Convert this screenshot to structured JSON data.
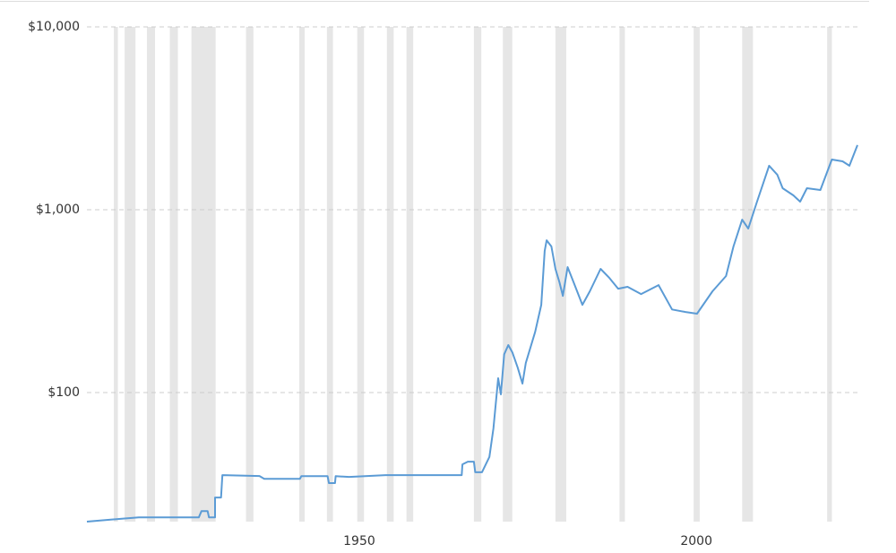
{
  "chart_data": {
    "type": "line",
    "log_scale": true,
    "grid": true,
    "color": "#5b9bd5",
    "band_color": "#e6e6e6",
    "x": [
      1909.6,
      1915.2,
      1917.3,
      1926.2,
      1926.6,
      1927.5,
      1927.7,
      1928.6,
      1928.6,
      1929.5,
      1929.7,
      1935.2,
      1935.9,
      1941.2,
      1941.4,
      1945.3,
      1945.5,
      1946.4,
      1946.5,
      1948.5,
      1953.9,
      1965.2,
      1965.3,
      1966.1,
      1967.0,
      1967.2,
      1968.2,
      1969.3,
      1969.9,
      1970.6,
      1971.0,
      1971.5,
      1972.1,
      1972.7,
      1973.5,
      1974.2,
      1974.7,
      1976.1,
      1977.0,
      1977.5,
      1977.8,
      1978.5,
      1979.1,
      1979.7,
      1980.2,
      1980.9,
      1981.8,
      1983.1,
      1984.2,
      1985.8,
      1987.1,
      1988.4,
      1989.8,
      1991.8,
      1994.4,
      1996.4,
      1998.4,
      2000.1,
      2002.4,
      2004.4,
      2005.5,
      2006.8,
      2007.7,
      2009.0,
      2010.8,
      2012.0,
      2012.8,
      2014.4,
      2015.4,
      2016.4,
      2018.4,
      2020.1,
      2021.7,
      2022.7,
      2023.9
    ],
    "values": [
      19.7,
      20.5,
      20.8,
      20.8,
      22.5,
      22.5,
      20.8,
      20.8,
      26.7,
      26.7,
      35.4,
      35.0,
      33.8,
      33.8,
      34.9,
      34.9,
      32.0,
      32.0,
      34.9,
      34.6,
      35.4,
      35.4,
      40.5,
      41.9,
      41.9,
      36.7,
      36.7,
      44.5,
      63.7,
      119.8,
      97.8,
      162,
      182,
      166,
      137,
      112,
      145,
      215,
      302,
      595,
      681,
      630,
      475,
      401,
      338,
      486,
      401,
      302,
      358,
      475,
      424,
      370,
      379,
      346,
      387,
      285,
      276,
      270,
      358,
      434,
      630,
      883,
      789,
      1107,
      1740,
      1555,
      1312,
      1198,
      1107,
      1312,
      1282,
      1882,
      1840,
      1740,
      2258
    ],
    "recessions": [
      [
        1913.6,
        1914.2
      ],
      [
        1915.2,
        1916.8
      ],
      [
        1918.5,
        1919.7
      ],
      [
        1921.9,
        1923.1
      ],
      [
        1925.1,
        1928.7
      ],
      [
        1933.2,
        1934.3
      ],
      [
        1941.1,
        1941.9
      ],
      [
        1945.2,
        1946.1
      ],
      [
        1949.7,
        1950.7
      ],
      [
        1954.1,
        1955.1
      ],
      [
        1957.0,
        1958.0
      ],
      [
        1967.0,
        1968.1
      ],
      [
        1971.3,
        1972.7
      ],
      [
        1979.1,
        1980.7
      ],
      [
        1988.6,
        1989.4
      ],
      [
        1999.6,
        2000.5
      ],
      [
        2006.8,
        2008.4
      ],
      [
        2019.4,
        2020.1
      ]
    ],
    "xlim": [
      1909.6,
      2023.9
    ],
    "xticks": [
      1950,
      2000
    ],
    "ylim": [
      19.7,
      10000
    ],
    "yticks": [
      {
        "value": 100,
        "label": "$100"
      },
      {
        "value": 1000,
        "label": "$1,000"
      },
      {
        "value": 10000,
        "label": "$10,000"
      }
    ]
  }
}
